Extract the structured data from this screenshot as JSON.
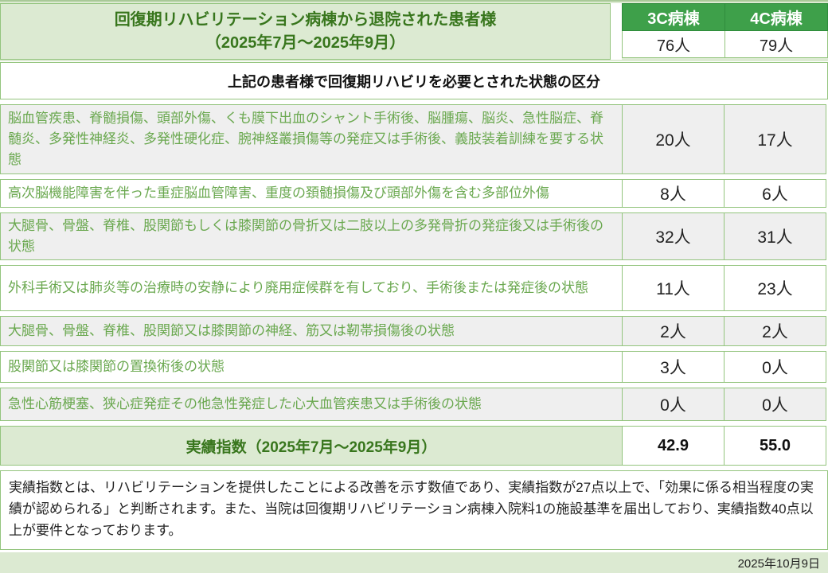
{
  "header": {
    "title_line1": "回復期リハビリテーション病棟から退院された患者様",
    "title_line2": "（2025年7月～2025年9月）",
    "ward1_label": "3C病棟",
    "ward2_label": "4C病棟",
    "ward1_total": "76人",
    "ward2_total": "79人"
  },
  "section_header": "上記の患者様で回復期リハビリを必要とされた状態の区分",
  "rows": [
    {
      "label": "脳血管疾患、脊髄損傷、頭部外傷、くも膜下出血のシャント手術後、脳腫瘍、脳炎、急性脳症、脊髄炎、多発性神経炎、多発性硬化症、腕神経叢損傷等の発症又は手術後、義肢装着訓練を要する状態",
      "c3": "20人",
      "c4": "17人"
    },
    {
      "label": "高次脳機能障害を伴った重症脳血管障害、重度の頚髄損傷及び頭部外傷を含む多部位外傷",
      "c3": "8人",
      "c4": "6人"
    },
    {
      "label": "大腿骨、骨盤、脊椎、股関節もしくは膝関節の骨折又は二肢以上の多発骨折の発症後又は手術後の状態",
      "c3": "32人",
      "c4": "31人"
    },
    {
      "label": "外科手術又は肺炎等の治療時の安静により廃用症候群を有しており、手術後または発症後の状態",
      "c3": "11人",
      "c4": "23人"
    },
    {
      "label": "大腿骨、骨盤、脊椎、股関節又は膝関節の神経、筋又は靭帯損傷後の状態",
      "c3": "2人",
      "c4": "2人"
    },
    {
      "label": "股関節又は膝関節の置換術後の状態",
      "c3": "3人",
      "c4": "0人"
    },
    {
      "label": "急性心筋梗塞、狭心症発症その他急性発症した心大血管疾患又は手術後の状態",
      "c3": "0人",
      "c4": "0人"
    }
  ],
  "index_row": {
    "label": "実績指数（2025年7月～2025年9月）",
    "c3": "42.9",
    "c4": "55.0"
  },
  "footnote": "実績指数とは、リハビリテーションを提供したことによる改善を示す数値であり、実績指数が27点以上で、「効果に係る相当程度の実績が認められる」と判断されます。また、当院は回復期リハビリテーション病棟入院料1の施設基準を届出しており、実績指数40点以上が要件となっております。",
  "date": "2025年10月9日",
  "colors": {
    "accent_dark_green": "#3ea04a",
    "title_text_green": "#38761d",
    "border_green": "#93c47d",
    "light_green_bg": "#dcead2",
    "row_shade_gray": "#efefef",
    "condition_text_green": "#6aa84f"
  }
}
